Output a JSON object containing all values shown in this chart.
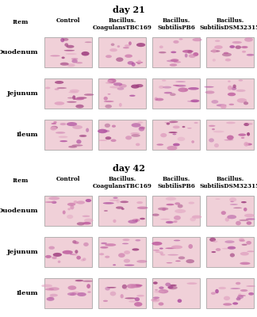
{
  "day21_title": "day 21",
  "day42_title": "day 42",
  "col_headers": [
    "Item",
    "Control",
    "Bacillus.\nCoagulansTBC169",
    "Bacillus.\nSubtilisPB6",
    "Bacillus.\nSubtilisDSM32315"
  ],
  "row_labels": [
    "Duodenum",
    "Jejunum",
    "Ileum"
  ],
  "background_color": "#f5f5f5",
  "image_bg_colors_day21": [
    [
      "#d4a0b0",
      "#d8a8b8",
      "#c8909a",
      "#c89098"
    ],
    [
      "#e8c0c8",
      "#d8a8b0",
      "#d0a0a8",
      "#d8aab0"
    ],
    [
      "#d0a0a8",
      "#d0a0a8",
      "#c890a0",
      "#d0a0a8"
    ]
  ],
  "image_bg_colors_day42": [
    [
      "#d8a8b8",
      "#d8a8c0",
      "#c898a8",
      "#c898a0"
    ],
    [
      "#d8a8b0",
      "#d0a0b0",
      "#d0a0a8",
      "#d8a8b0"
    ],
    [
      "#d0a0a8",
      "#d0a0b0",
      "#c890a0",
      "#d0a0a8"
    ]
  ],
  "fig_width": 3.24,
  "fig_height": 4.0,
  "dpi": 100,
  "border_color": "#888888",
  "title_fontsize": 8,
  "header_fontsize": 5.5,
  "label_fontsize": 6,
  "item_label_fontsize": 6.5
}
